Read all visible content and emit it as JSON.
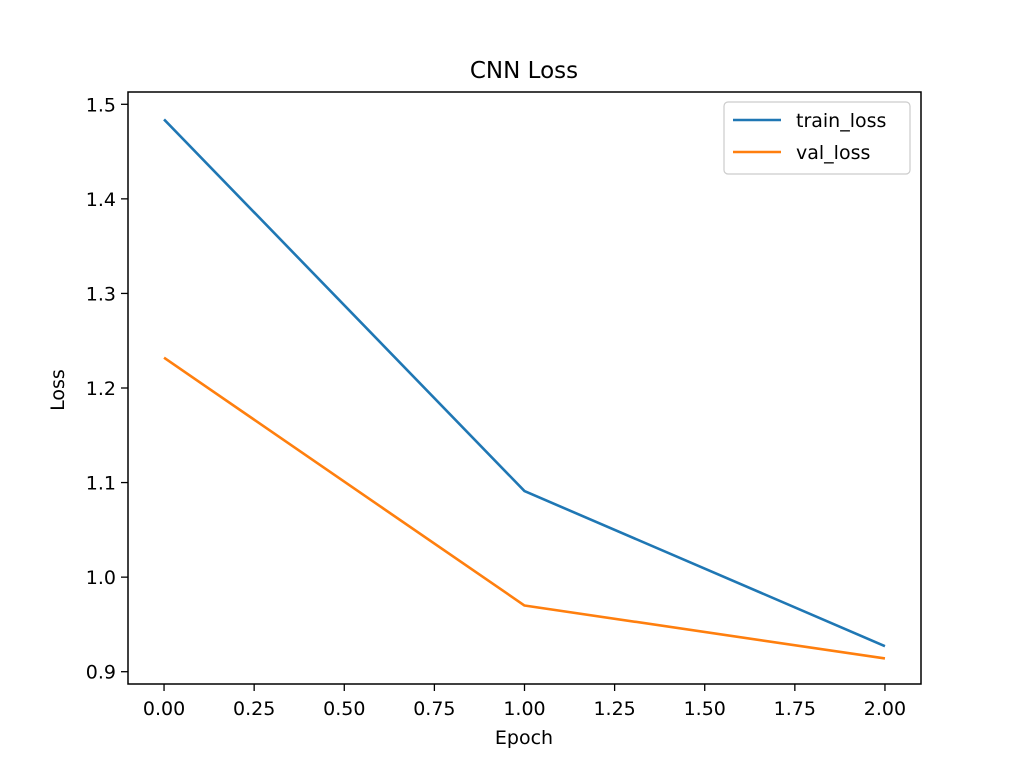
{
  "chart_data": {
    "type": "line",
    "title": "CNN Loss",
    "xlabel": "Epoch",
    "ylabel": "Loss",
    "xlim": [
      -0.1,
      2.1
    ],
    "ylim": [
      0.887,
      1.513
    ],
    "xticks": [
      0.0,
      0.25,
      0.5,
      0.75,
      1.0,
      1.25,
      1.5,
      1.75,
      2.0
    ],
    "xtick_labels": [
      "0.00",
      "0.25",
      "0.50",
      "0.75",
      "1.00",
      "1.25",
      "1.50",
      "1.75",
      "2.00"
    ],
    "yticks": [
      0.9,
      1.0,
      1.1,
      1.2,
      1.3,
      1.4,
      1.5
    ],
    "ytick_labels": [
      "0.9",
      "1.0",
      "1.1",
      "1.2",
      "1.3",
      "1.4",
      "1.5"
    ],
    "x": [
      0,
      1,
      2
    ],
    "series": [
      {
        "name": "train_loss",
        "values": [
          1.484,
          1.091,
          0.927
        ],
        "color": "#1f77b4"
      },
      {
        "name": "val_loss",
        "values": [
          1.232,
          0.97,
          0.914
        ],
        "color": "#ff7f0e"
      }
    ],
    "legend": "top-right",
    "grid": false
  }
}
